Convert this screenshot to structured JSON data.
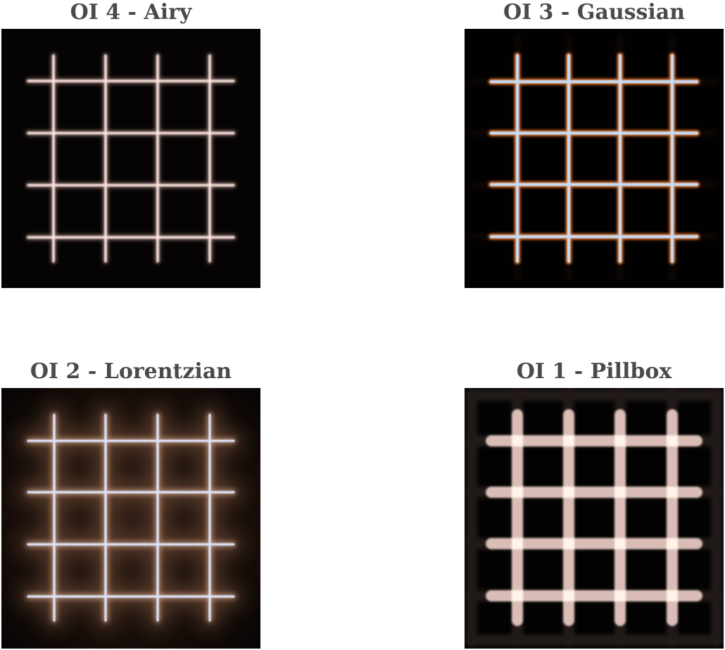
{
  "panels": [
    {
      "id": "airy",
      "title": "OI 4 - Airy",
      "grid_count": 4
    },
    {
      "id": "gaussian",
      "title": "OI 3 - Gaussian",
      "grid_count": 4
    },
    {
      "id": "lorentzian",
      "title": "OI 2 - Lorentzian",
      "grid_count": 4
    },
    {
      "id": "pillbox",
      "title": "OI 1 - Pillbox",
      "grid_count": 4
    }
  ],
  "colors": {
    "title_text": "#4a4a4a",
    "background": "#ffffff",
    "image_background": "#000000",
    "airy_line": "#fde8e4",
    "gaussian_core": "#c7dcf6",
    "gaussian_fringe": "#c8621a",
    "lorentzian_core": "#dbe4fb",
    "lorentzian_halo": "#6a4a36",
    "pillbox_line": "#d9bdb6",
    "pillbox_intersection": "#fff3ea"
  }
}
